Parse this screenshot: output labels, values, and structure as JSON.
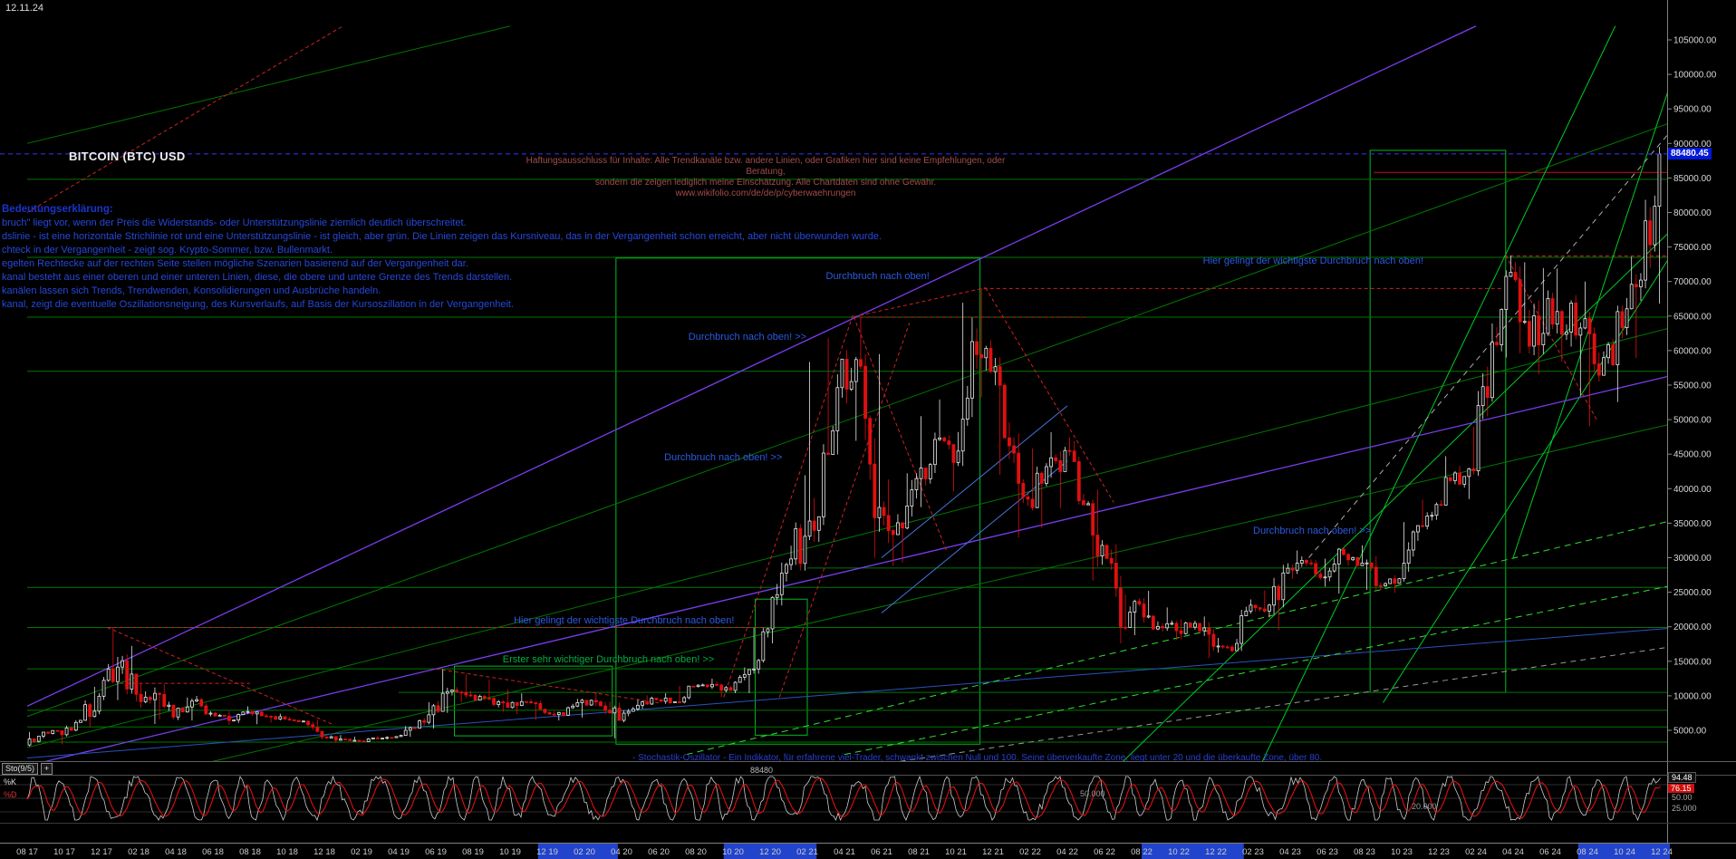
{
  "window": {
    "date_label": "12.11.24"
  },
  "header": {
    "title": "BITCOIN (BTC) USD"
  },
  "disclaimer": {
    "line1": "Haftungsausschluss für Inhalte: Alle Trendkanäle bzw. andere Linien, oder Grafiken hier sind keine Empfehlungen, oder Beratung,",
    "line2": "sondern die zeigen lediglich meine Einschätzung. Alle Chartdaten sind ohne Gewähr. www.wikifolio.com/de/de/p/cyberwaehrungen"
  },
  "legend": {
    "heading": "Bedeutungserklärung:",
    "lines": [
      "bruch\" liegt vor, wenn der Preis die Widerstands- oder Unterstützungslinie ziemlich deutlich überschreitet.",
      "dslinie - ist eine horizontale Strichlinie rot und eine Unterstützungslinie - ist gleich, aber grün. Die Linien zeigen das Kursniveau, das in der Vergangenheit schon erreicht, aber nicht überwunden wurde.",
      "chteck in der Vergangenheit - zeigt sog. Krypto-Sommer, bzw. Bullenmarkt.",
      "egelten Rechtecke auf der rechten Seite stellen mögliche Szenarien basierend auf der Vergangenheit dar.",
      "kanal besteht aus einer oberen und einer unteren Linien, diese, die obere und untere Grenze des Trends darstellen.",
      "kanälen lassen sich Trends, Trendwenden, Konsolidierungen und Ausbrüche handeln.",
      "kanal, zeigt die eventuelle Oszillationsneigung, des Kursverlaufs, auf Basis der Kursoszillation in der Vergangenheit."
    ]
  },
  "price_axis": {
    "current_price": "88480.45",
    "current_price_value": 88480.45,
    "ticks": [
      "105000.00",
      "100000.00",
      "95000.00",
      "90000.00",
      "85000.00",
      "80000.00",
      "75000.00",
      "70000.00",
      "65000.00",
      "60000.00",
      "55000.00",
      "50000.00",
      "45000.00",
      "40000.00",
      "35000.00",
      "30000.00",
      "25000.00",
      "20000.00",
      "15000.00",
      "10000.00",
      "5000.00"
    ]
  },
  "time_axis": {
    "labels": [
      "08 17",
      "10 17",
      "12 17",
      "02 18",
      "04 18",
      "06 18",
      "08 18",
      "10 18",
      "12 18",
      "02 19",
      "04 19",
      "06 19",
      "08 19",
      "10 19",
      "12 19",
      "02 20",
      "04 20",
      "06 20",
      "08 20",
      "10 20",
      "12 20",
      "02 21",
      "04 21",
      "06 21",
      "08 21",
      "10 21",
      "12 21",
      "02 22",
      "04 22",
      "06 22",
      "08 22",
      "10 22",
      "12 22",
      "02 23",
      "04 23",
      "06 23",
      "08 23",
      "10 23",
      "12 23",
      "02 24",
      "04 24",
      "06 24",
      "08 24",
      "10 24",
      "12 24"
    ],
    "highlight_ranges": [
      [
        27.5,
        31.8
      ],
      [
        37.5,
        42.5
      ],
      [
        60.0,
        65.5
      ],
      [
        83.5,
        89.5
      ]
    ]
  },
  "annotations": [
    {
      "text": "Durchbruch nach oben! >>",
      "m": 35.6,
      "p": 62000,
      "color": "#2b5ae0"
    },
    {
      "text": "Durchbruch nach oben!",
      "m": 43.0,
      "p": 70800,
      "color": "#2b5ae0"
    },
    {
      "text": "Durchbruch nach oben! >>",
      "m": 34.3,
      "p": 44500,
      "color": "#2b5ae0"
    },
    {
      "text": "Hier gelingt der wichtigste Durchbruch nach oben!",
      "m": 26.2,
      "p": 20900,
      "color": "#2b5ae0"
    },
    {
      "text": "Erster sehr wichtiger Durchbruch nach oben! >>",
      "m": 25.6,
      "p": 15200,
      "color": "#00b044"
    },
    {
      "text": "Hier gelingt der wichtigste Durchbruch nach oben!",
      "m": 63.3,
      "p": 73000,
      "color": "#2b5ae0"
    },
    {
      "text": "Durchbruch nach oben! >>",
      "m": 66.0,
      "p": 33900,
      "color": "#2b5ae0"
    }
  ],
  "oscillator": {
    "name": "Sto(9/5)",
    "expand_label": "+",
    "k_label": "%K",
    "d_label": "%D",
    "k_value": "94.48",
    "d_value": "76.15",
    "axis_label_50": "50.00",
    "axis_label_25": "25.000",
    "grid_label_50": "50.000",
    "grid_label_20": "20.000",
    "crosshair_value": "88480",
    "note": "- Stochastik-Oszillator - Ein Indikator, für erfahrene viel-Trader, schwankt zwischen Null und 100. Seine überverkaufte Zone, liegt unter 20 und die überkaufte Zone, über 80."
  },
  "colors": {
    "background": "#000000",
    "up_candle": "#e8e8e8",
    "down_candle": "#e01010",
    "current_price_badge": "#0018d8",
    "box_green": "#00bb22",
    "support_green": "#007700",
    "resistance_red": "#cc2222"
  },
  "chart_data": {
    "type": "candlestick",
    "symbol": "BITCOIN (BTC) USD",
    "x_unit": "month",
    "start": "2017-08",
    "end": "2024-11",
    "ylim": [
      0,
      107000
    ],
    "last_price": 88480.45,
    "monthly_ohlc": [
      [
        "2017-08",
        2875,
        4765,
        2675,
        4735
      ],
      [
        "2017-09",
        4735,
        4975,
        2970,
        4360
      ],
      [
        "2017-10",
        4360,
        6470,
        4110,
        6450
      ],
      [
        "2017-11",
        6450,
        11300,
        5440,
        9940
      ],
      [
        "2017-12",
        9940,
        19870,
        9380,
        14160
      ],
      [
        "2018-01",
        14160,
        17230,
        9220,
        10220
      ],
      [
        "2018-02",
        10220,
        11790,
        5920,
        10360
      ],
      [
        "2018-03",
        10360,
        11680,
        6600,
        6930
      ],
      [
        "2018-04",
        6930,
        9760,
        6430,
        9240
      ],
      [
        "2018-05",
        9240,
        9990,
        7040,
        7490
      ],
      [
        "2018-06",
        7490,
        7780,
        5780,
        6400
      ],
      [
        "2018-07",
        6400,
        8480,
        6070,
        7730
      ],
      [
        "2018-08",
        7730,
        7760,
        5880,
        7030
      ],
      [
        "2018-09",
        7030,
        7410,
        6100,
        6620
      ],
      [
        "2018-10",
        6620,
        6940,
        6190,
        6340
      ],
      [
        "2018-11",
        6340,
        6540,
        3650,
        4040
      ],
      [
        "2018-12",
        4040,
        4310,
        3160,
        3740
      ],
      [
        "2019-01",
        3740,
        4090,
        3360,
        3460
      ],
      [
        "2019-02",
        3460,
        4190,
        3350,
        3850
      ],
      [
        "2019-03",
        3850,
        4130,
        3670,
        4100
      ],
      [
        "2019-04",
        4100,
        5620,
        4060,
        5320
      ],
      [
        "2019-05",
        5320,
        9070,
        5270,
        8560
      ],
      [
        "2019-06",
        8560,
        13830,
        7530,
        10820
      ],
      [
        "2019-07",
        10820,
        13130,
        9080,
        10080
      ],
      [
        "2019-08",
        10080,
        12320,
        9360,
        9630
      ],
      [
        "2019-09",
        9630,
        10900,
        7700,
        8310
      ],
      [
        "2019-10",
        8310,
        10350,
        7350,
        9150
      ],
      [
        "2019-11",
        9150,
        9520,
        6520,
        7570
      ],
      [
        "2019-12",
        7570,
        7740,
        6430,
        7190
      ],
      [
        "2020-01",
        7190,
        9570,
        6850,
        9350
      ],
      [
        "2020-02",
        9350,
        10500,
        8520,
        8540
      ],
      [
        "2020-03",
        8540,
        9170,
        3850,
        6440
      ],
      [
        "2020-04",
        6440,
        9440,
        6160,
        8630
      ],
      [
        "2020-05",
        8630,
        10070,
        8110,
        9450
      ],
      [
        "2020-06",
        9450,
        10380,
        8830,
        9140
      ],
      [
        "2020-07",
        9140,
        11420,
        8900,
        11350
      ],
      [
        "2020-08",
        11350,
        12480,
        11000,
        11650
      ],
      [
        "2020-09",
        11650,
        12050,
        9830,
        10780
      ],
      [
        "2020-10",
        10780,
        14100,
        10380,
        13800
      ],
      [
        "2020-11",
        13800,
        19850,
        13200,
        19700
      ],
      [
        "2020-12",
        19700,
        29300,
        17600,
        29000
      ],
      [
        "2021-01",
        29000,
        41950,
        28130,
        33110
      ],
      [
        "2021-02",
        33110,
        58350,
        32300,
        45160
      ],
      [
        "2021-03",
        45160,
        61780,
        44950,
        58760
      ],
      [
        "2021-04",
        58760,
        64850,
        46930,
        57720
      ],
      [
        "2021-05",
        57720,
        59500,
        30000,
        37280
      ],
      [
        "2021-06",
        37280,
        41330,
        28800,
        35060
      ],
      [
        "2021-07",
        35060,
        42230,
        29300,
        41460
      ],
      [
        "2021-08",
        41460,
        50500,
        37330,
        47130
      ],
      [
        "2021-09",
        47130,
        52920,
        39600,
        43790
      ],
      [
        "2021-10",
        43790,
        66930,
        43290,
        61300
      ],
      [
        "2021-11",
        61300,
        69000,
        53260,
        56950
      ],
      [
        "2021-12",
        56950,
        59040,
        42000,
        46210
      ],
      [
        "2022-01",
        46210,
        47990,
        32950,
        38480
      ],
      [
        "2022-02",
        38480,
        45820,
        34320,
        43190
      ],
      [
        "2022-03",
        43190,
        48190,
        37160,
        45530
      ],
      [
        "2022-04",
        45530,
        47440,
        37700,
        37650
      ],
      [
        "2022-05",
        37650,
        39900,
        26700,
        31790
      ],
      [
        "2022-06",
        31790,
        31960,
        17600,
        19930
      ],
      [
        "2022-07",
        19930,
        24670,
        18780,
        23290
      ],
      [
        "2022-08",
        23290,
        25200,
        19520,
        20050
      ],
      [
        "2022-09",
        20050,
        22800,
        18130,
        19420
      ],
      [
        "2022-10",
        19420,
        21080,
        18190,
        20490
      ],
      [
        "2022-11",
        20490,
        21480,
        15480,
        17160
      ],
      [
        "2022-12",
        17160,
        18390,
        16260,
        16540
      ],
      [
        "2023-01",
        16540,
        23960,
        16490,
        23130
      ],
      [
        "2023-02",
        23130,
        25250,
        21350,
        23140
      ],
      [
        "2023-03",
        23140,
        29190,
        19550,
        28470
      ],
      [
        "2023-04",
        28470,
        31050,
        26940,
        29250
      ],
      [
        "2023-05",
        29250,
        29850,
        25800,
        27210
      ],
      [
        "2023-06",
        27210,
        31400,
        24800,
        30470
      ],
      [
        "2023-07",
        30470,
        31800,
        28850,
        29230
      ],
      [
        "2023-08",
        29230,
        30200,
        25350,
        25930
      ],
      [
        "2023-09",
        25930,
        27480,
        24900,
        26960
      ],
      [
        "2023-10",
        26960,
        35150,
        26550,
        34650
      ],
      [
        "2023-11",
        34650,
        38410,
        34100,
        37710
      ],
      [
        "2023-12",
        37710,
        44700,
        37610,
        42280
      ],
      [
        "2024-01",
        42280,
        48970,
        38500,
        42580
      ],
      [
        "2024-02",
        42580,
        63930,
        41880,
        61200
      ],
      [
        "2024-03",
        61200,
        73790,
        59000,
        71330
      ],
      [
        "2024-04",
        71330,
        72800,
        59600,
        60640
      ],
      [
        "2024-05",
        60640,
        71950,
        56550,
        67530
      ],
      [
        "2024-06",
        67530,
        71900,
        58400,
        62680
      ],
      [
        "2024-07",
        62680,
        70000,
        53500,
        64620
      ],
      [
        "2024-08",
        64620,
        65600,
        49050,
        58970
      ],
      [
        "2024-09",
        58970,
        66500,
        52550,
        63330
      ],
      [
        "2024-10",
        63330,
        73600,
        58900,
        70210
      ],
      [
        "2024-11",
        70210,
        89500,
        66800,
        88480
      ]
    ],
    "overlays": {
      "current_price_line": {
        "p": 88480.45,
        "color": "#3333ff",
        "dash": "5,4"
      },
      "horizontal_lines": [
        {
          "p": 84800
        },
        {
          "p": 73500
        },
        {
          "p": 64850
        },
        {
          "p": 57000
        },
        {
          "p": 28500,
          "m1": 42
        },
        {
          "p": 25700
        },
        {
          "p": 19900
        },
        {
          "p": 13900
        },
        {
          "p": 10500,
          "m1": 20
        },
        {
          "p": 7900
        },
        {
          "p": 5500
        },
        {
          "p": 3300
        },
        {
          "p": 85800,
          "m1": 72.5,
          "m2": 89.5,
          "color": "#cc1111"
        },
        {
          "p": 73700,
          "m1": 79.5,
          "m2": 89.5,
          "color": "#cc2222",
          "dash": "4,3"
        },
        {
          "p": 69000,
          "m1": 51.5,
          "m2": 79.5,
          "color": "#cc2222",
          "dash": "4,3"
        },
        {
          "p": 64850,
          "m1": 44.5,
          "m2": 57,
          "color": "#cc2222",
          "dash": "4,3"
        },
        {
          "p": 19900,
          "m1": 4.3,
          "m2": 39.8,
          "color": "#cc2222",
          "dash": "4,3"
        },
        {
          "p": 11800,
          "m1": 5,
          "m2": 12,
          "color": "#cc2222",
          "dash": "4,3"
        }
      ],
      "trend_lines": [
        {
          "m1": 0,
          "p1": 2500,
          "m2": 89.5,
          "p2": 64000,
          "color": "#007700"
        },
        {
          "m1": 10,
          "p1": 500,
          "m2": 89.5,
          "p2": 50000,
          "color": "#007700"
        },
        {
          "m1": 0,
          "p1": 7000,
          "m2": 89.5,
          "p2": 94000,
          "color": "#007700"
        },
        {
          "m1": 0,
          "p1": 90000,
          "m2": 26,
          "p2": 107000,
          "color": "#007700"
        },
        {
          "m1": 66.5,
          "p1": 500,
          "m2": 85.5,
          "p2": 107000,
          "color": "#00cc22"
        },
        {
          "m1": 59,
          "p1": 500,
          "m2": 89.5,
          "p2": 80000,
          "color": "#00cc22"
        },
        {
          "m1": 73,
          "p1": 9000,
          "m2": 89.5,
          "p2": 78000,
          "color": "#00cc22"
        },
        {
          "m1": 80,
          "p1": 30000,
          "m2": 89.5,
          "p2": 107000,
          "color": "#00cc22"
        },
        {
          "m1": 0,
          "p1": 8500,
          "m2": 78,
          "p2": 107000,
          "color": "#7b3df0",
          "w": 1.3
        },
        {
          "m1": 1,
          "p1": 500,
          "m2": 89.5,
          "p2": 57000,
          "color": "#7b3df0",
          "w": 1.3
        },
        {
          "m1": 0,
          "p1": 1000,
          "m2": 89.5,
          "p2": 20000,
          "color": "#2a52be"
        },
        {
          "m1": 47,
          "p1": 500,
          "m2": 89.5,
          "p2": 17500,
          "color": "#999999",
          "dash": "6,5"
        },
        {
          "m1": 69,
          "p1": 30000,
          "m2": 89.5,
          "p2": 95000,
          "color": "#aaaaaa",
          "dash": "6,5"
        },
        {
          "m1": 35.5,
          "p1": 1500,
          "m2": 89.5,
          "p2": 36000,
          "color": "#33dd33",
          "dash": "7,5"
        },
        {
          "m1": 44,
          "p1": 1500,
          "m2": 89.5,
          "p2": 26500,
          "color": "#33dd33",
          "dash": "7,5"
        },
        {
          "m1": 46,
          "p1": 30000,
          "m2": 56,
          "p2": 52000,
          "color": "#4477dd"
        },
        {
          "m1": 46,
          "p1": 22000,
          "m2": 56,
          "p2": 44000,
          "color": "#4477dd"
        },
        {
          "m1": 4.3,
          "p1": 19900,
          "m2": 16.5,
          "p2": 5800,
          "color": "#cc2222",
          "dash": "4,3"
        },
        {
          "m1": 22,
          "p1": 13900,
          "m2": 34,
          "p2": 9000,
          "color": "#cc2222",
          "dash": "4,3"
        },
        {
          "m1": 37.5,
          "p1": 9800,
          "m2": 44.5,
          "p2": 65500,
          "color": "#cc2222",
          "dash": "4,3"
        },
        {
          "m1": 40.5,
          "p1": 9800,
          "m2": 47.5,
          "p2": 64000,
          "color": "#cc2222",
          "dash": "4,3"
        },
        {
          "m1": 44.5,
          "p1": 64900,
          "m2": 51.6,
          "p2": 69100,
          "color": "#cc2222",
          "dash": "4,3"
        },
        {
          "m1": 51.6,
          "p1": 69100,
          "m2": 58.5,
          "p2": 38000,
          "color": "#cc2222",
          "dash": "4,3"
        },
        {
          "m1": 44.5,
          "p1": 64900,
          "m2": 49.5,
          "p2": 31000,
          "color": "#cc2222",
          "dash": "4,3"
        },
        {
          "m1": 79.6,
          "p1": 73800,
          "m2": 84.5,
          "p2": 50000,
          "color": "#cc2222",
          "dash": "4,3"
        },
        {
          "m1": 0,
          "p1": 80000,
          "m2": 17,
          "p2": 107000,
          "color": "#cc2222",
          "dash": "4,3"
        }
      ],
      "boxes": [
        {
          "m1": 23,
          "p1": 4200,
          "m2": 31.5,
          "p2": 14300
        },
        {
          "m1": 31.7,
          "p1": 3000,
          "m2": 51.3,
          "p2": 73400
        },
        {
          "m1": 39.2,
          "p1": 4300,
          "m2": 42,
          "p2": 24000
        },
        {
          "m1": 72.3,
          "p1": 10500,
          "m2": 79.6,
          "p2": 89000
        }
      ]
    },
    "stochastic": {
      "indicator": "Sto(9/5)",
      "k": 94.48,
      "d": 76.15,
      "range": [
        0,
        100
      ],
      "overbought": 80,
      "oversold": 20
    }
  }
}
